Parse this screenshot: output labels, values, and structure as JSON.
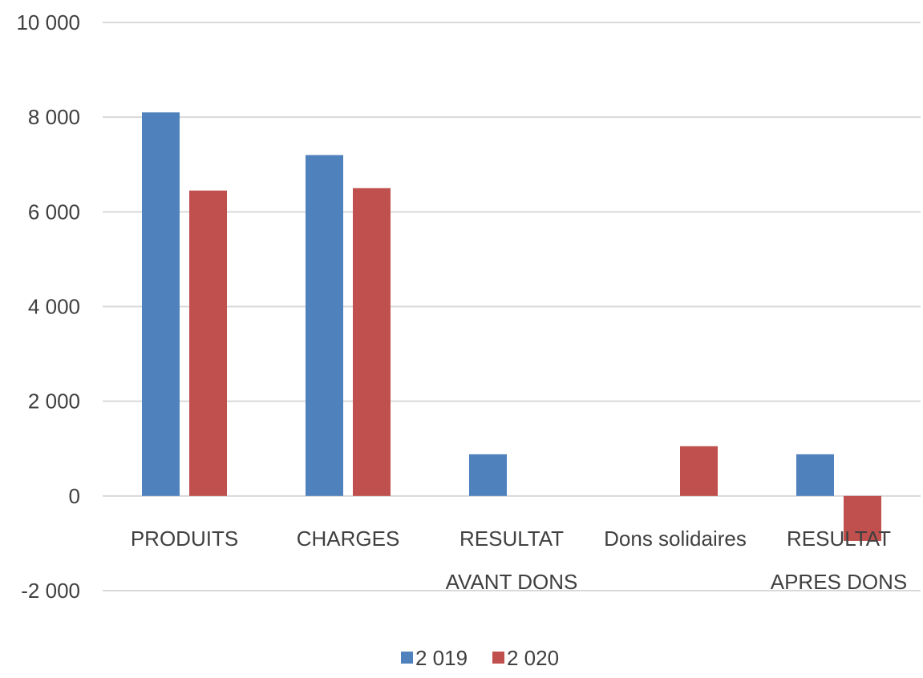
{
  "chart_data": {
    "type": "bar",
    "title": "",
    "xlabel": "",
    "ylabel": "",
    "categories": [
      [
        "PRODUITS"
      ],
      [
        "CHARGES"
      ],
      [
        "RESULTAT",
        "AVANT DONS"
      ],
      [
        "Dons solidaires"
      ],
      [
        "RESULTAT",
        "APRES DONS"
      ]
    ],
    "series": [
      {
        "name": "2 019",
        "color": "#4f81bd",
        "values": [
          8100,
          7200,
          880,
          0,
          880
        ]
      },
      {
        "name": "2 020",
        "color": "#c0504d",
        "values": [
          6450,
          6500,
          0,
          1050,
          -950
        ]
      }
    ],
    "ylim": [
      -2000,
      10000
    ],
    "yticks": [
      10000,
      8000,
      6000,
      4000,
      2000,
      0,
      -2000
    ],
    "ytick_labels": [
      "10 000",
      "8 000",
      "6 000",
      "4 000",
      "2 000",
      "0",
      "-2 000"
    ],
    "grid": true,
    "legend_position": "bottom"
  }
}
